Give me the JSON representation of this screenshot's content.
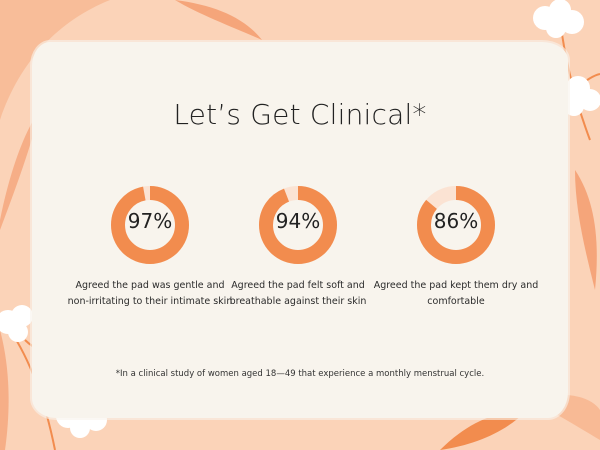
{
  "title": "Let’s Get Clinical*",
  "accent_color": "#f28c4e",
  "background_color": "#fbd3b8",
  "card_color": "#f8f4ed",
  "stats": [
    {
      "value": "97%",
      "fraction": 0.97,
      "caption": "Agreed the pad was gentle and non-irritating to their intimate skin"
    },
    {
      "value": "94%",
      "fraction": 0.94,
      "caption": "Agreed the pad felt soft and breathable against their skin"
    },
    {
      "value": "86%",
      "fraction": 0.86,
      "caption": "Agreed the pad kept them dry and comfortable"
    }
  ],
  "footnote": "*In a clinical study of women aged 18—49 that experience a monthly menstrual cycle.",
  "decorations": [
    "leaf-icon",
    "cotton-flower-icon"
  ]
}
